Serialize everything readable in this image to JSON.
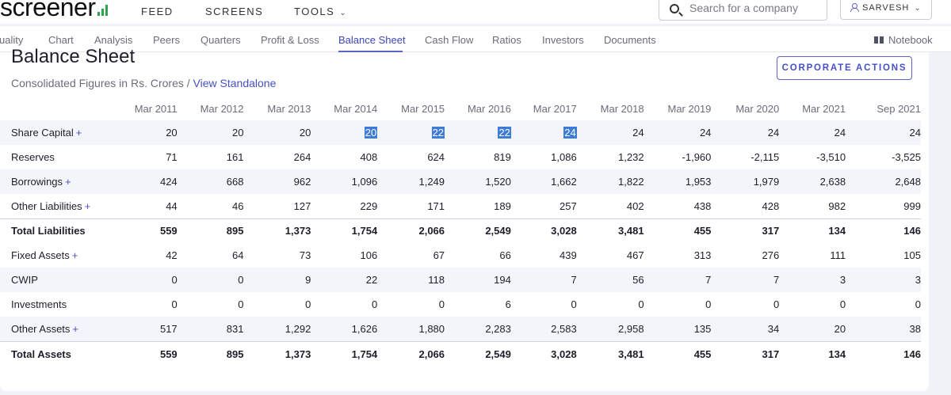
{
  "header": {
    "logo_text": "screener",
    "nav": [
      {
        "label": "FEED"
      },
      {
        "label": "SCREENS"
      },
      {
        "label": "TOOLS"
      }
    ],
    "search_placeholder": "Search for a company",
    "user_label": "SARVESH"
  },
  "tabs": {
    "items": [
      {
        "label": "uality"
      },
      {
        "label": "Chart"
      },
      {
        "label": "Analysis"
      },
      {
        "label": "Peers"
      },
      {
        "label": "Quarters"
      },
      {
        "label": "Profit & Loss"
      },
      {
        "label": "Balance Sheet"
      },
      {
        "label": "Cash Flow"
      },
      {
        "label": "Ratios"
      },
      {
        "label": "Investors"
      },
      {
        "label": "Documents"
      }
    ],
    "active": "Balance Sheet",
    "notebook_label": "Notebook"
  },
  "section": {
    "title": "Balance Sheet",
    "subtitle_prefix": "Consolidated Figures in Rs. Crores / ",
    "subtitle_link": "View Standalone",
    "corporate_actions_label": "CORPORATE ACTIONS"
  },
  "table": {
    "columns": [
      "Mar 2011",
      "Mar 2012",
      "Mar 2013",
      "Mar 2014",
      "Mar 2015",
      "Mar 2016",
      "Mar 2017",
      "Mar 2018",
      "Mar 2019",
      "Mar 2020",
      "Mar 2021",
      "Sep 2021"
    ],
    "rows": [
      {
        "label": "Share Capital",
        "expandable": true,
        "total": false,
        "values": [
          "20",
          "20",
          "20",
          "20",
          "22",
          "22",
          "24",
          "24",
          "24",
          "24",
          "24",
          "24"
        ],
        "selected": [
          3,
          4,
          5,
          6
        ]
      },
      {
        "label": "Reserves",
        "expandable": false,
        "total": false,
        "values": [
          "71",
          "161",
          "264",
          "408",
          "624",
          "819",
          "1,086",
          "1,232",
          "-1,960",
          "-2,115",
          "-3,510",
          "-3,525"
        ],
        "selected": []
      },
      {
        "label": "Borrowings",
        "expandable": true,
        "total": false,
        "values": [
          "424",
          "668",
          "962",
          "1,096",
          "1,249",
          "1,520",
          "1,662",
          "1,822",
          "1,953",
          "1,979",
          "2,638",
          "2,648"
        ],
        "selected": []
      },
      {
        "label": "Other Liabilities",
        "expandable": true,
        "total": false,
        "values": [
          "44",
          "46",
          "127",
          "229",
          "171",
          "189",
          "257",
          "402",
          "438",
          "428",
          "982",
          "999"
        ],
        "selected": []
      },
      {
        "label": "Total Liabilities",
        "expandable": false,
        "total": true,
        "values": [
          "559",
          "895",
          "1,373",
          "1,754",
          "2,066",
          "2,549",
          "3,028",
          "3,481",
          "455",
          "317",
          "134",
          "146"
        ],
        "selected": []
      },
      {
        "label": "Fixed Assets",
        "expandable": true,
        "total": false,
        "values": [
          "42",
          "64",
          "73",
          "106",
          "67",
          "66",
          "439",
          "467",
          "313",
          "276",
          "111",
          "105"
        ],
        "selected": []
      },
      {
        "label": "CWIP",
        "expandable": false,
        "total": false,
        "values": [
          "0",
          "0",
          "9",
          "22",
          "118",
          "194",
          "7",
          "56",
          "7",
          "7",
          "3",
          "3"
        ],
        "selected": []
      },
      {
        "label": "Investments",
        "expandable": false,
        "total": false,
        "values": [
          "0",
          "0",
          "0",
          "0",
          "0",
          "6",
          "0",
          "0",
          "0",
          "0",
          "0",
          "0"
        ],
        "selected": []
      },
      {
        "label": "Other Assets",
        "expandable": true,
        "total": false,
        "values": [
          "517",
          "831",
          "1,292",
          "1,626",
          "1,880",
          "2,283",
          "2,583",
          "2,958",
          "135",
          "34",
          "20",
          "38"
        ],
        "selected": []
      },
      {
        "label": "Total Assets",
        "expandable": false,
        "total": true,
        "values": [
          "559",
          "895",
          "1,373",
          "1,754",
          "2,066",
          "2,549",
          "3,028",
          "3,481",
          "455",
          "317",
          "134",
          "146"
        ],
        "selected": []
      }
    ],
    "expand_symbol": "+"
  },
  "colors": {
    "accent": "#4451c4",
    "selection": "#3d7bd8",
    "row_shade": "#f4f5fa",
    "logo_bars": "#2ea44f"
  }
}
